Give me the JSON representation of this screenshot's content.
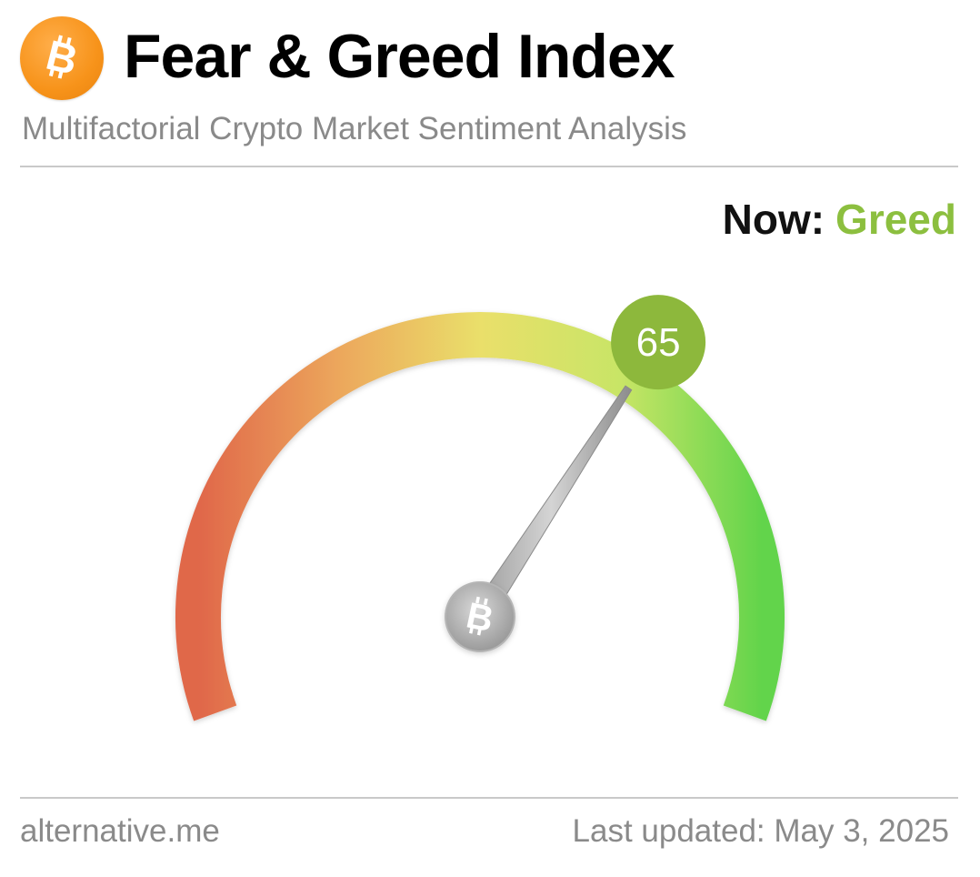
{
  "header": {
    "title": "Fear & Greed Index",
    "subtitle": "Multifactorial Crypto Market Sentiment Analysis",
    "logo_icon": "bitcoin-icon"
  },
  "status": {
    "now_label": "Now:",
    "now_value": "Greed",
    "now_color": "#8cbf3f"
  },
  "gauge": {
    "value": 65,
    "min": 0,
    "max": 100,
    "badge_color": "#8db83c",
    "gradient_colors": [
      "#e0674a",
      "#eca75c",
      "#eadf6a",
      "#c8e566",
      "#62d44b"
    ],
    "center_icon": "bitcoin-icon"
  },
  "footer": {
    "source": "alternative.me",
    "updated": "Last updated: May 3, 2025"
  },
  "colors": {
    "accent_orange": "#f7931a",
    "muted_text": "#8a8a8a"
  }
}
